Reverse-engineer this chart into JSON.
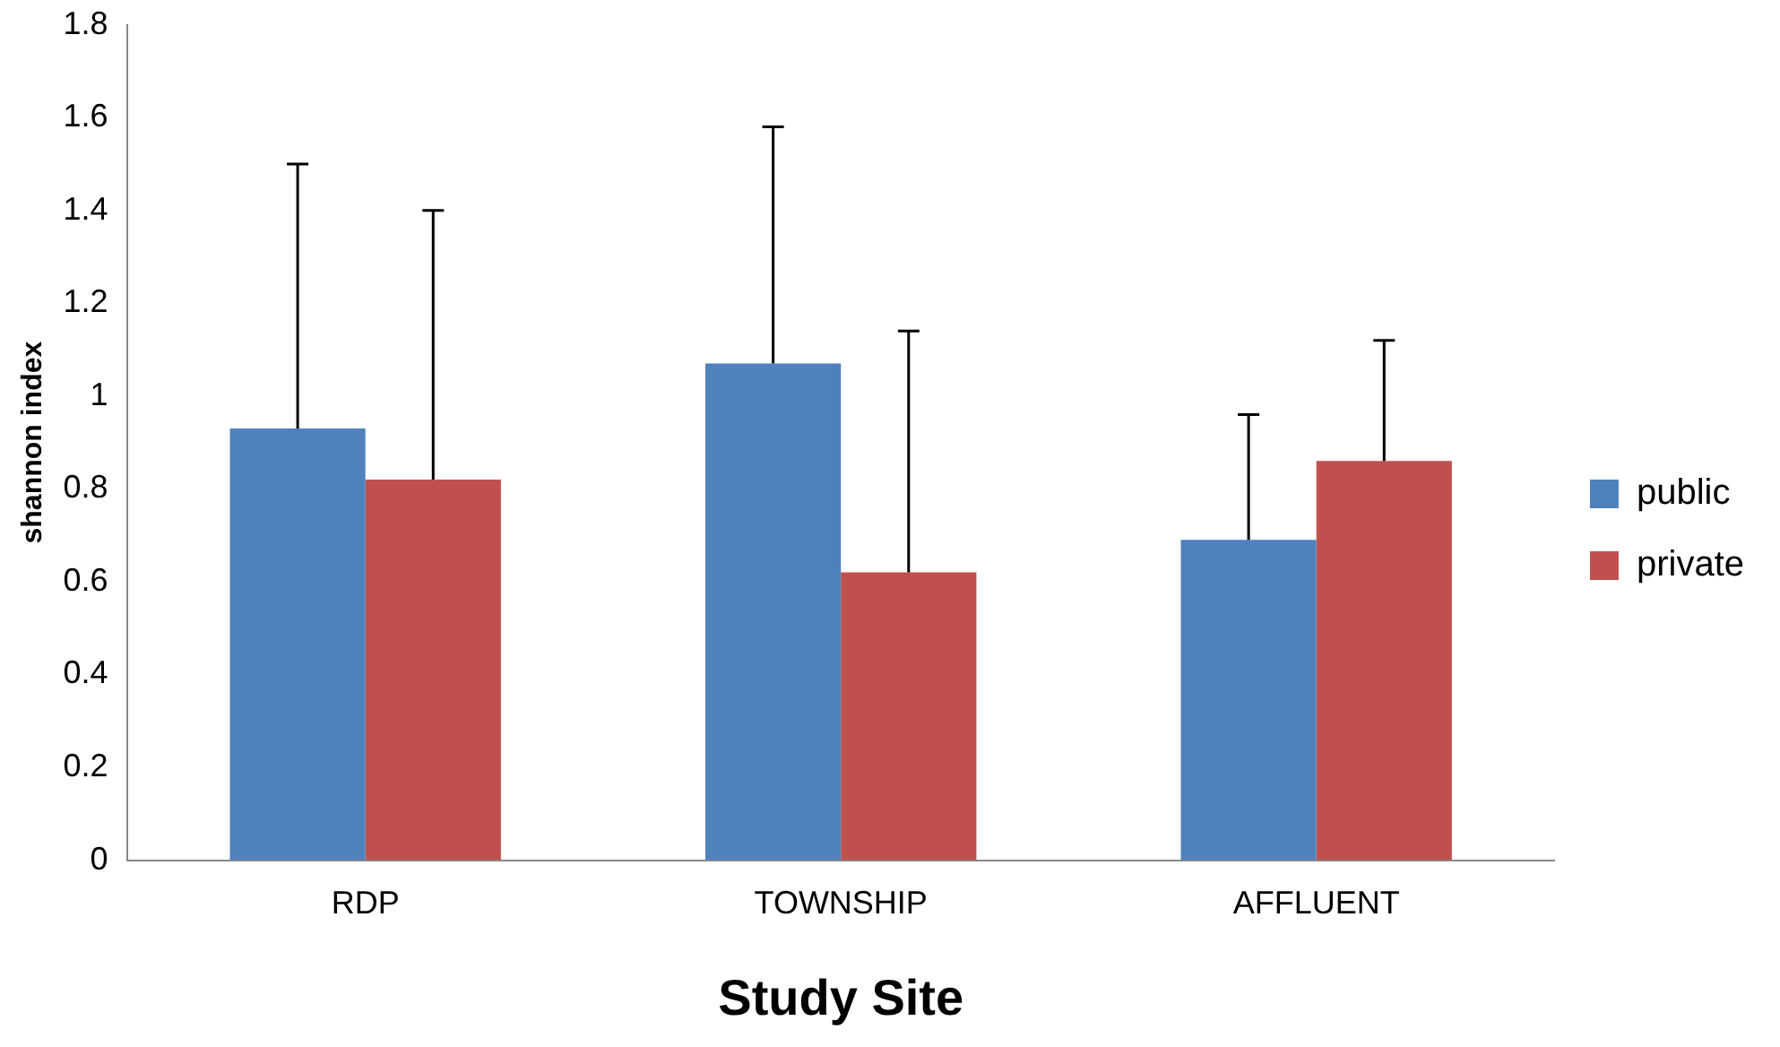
{
  "chart_data": {
    "type": "bar",
    "xlabel": "Study Site",
    "ylabel": "shannon index",
    "categories": [
      "RDP",
      "TOWNSHIP",
      "AFFLUENT"
    ],
    "series": [
      {
        "name": "public",
        "color": "#4f81bd",
        "values": [
          0.93,
          1.07,
          0.69
        ],
        "errors": [
          [
            0.93,
            1.5
          ],
          [
            1.07,
            1.58
          ],
          [
            0.69,
            0.96
          ]
        ]
      },
      {
        "name": "private",
        "color": "#c0504d",
        "values": [
          0.82,
          0.62,
          0.86
        ],
        "errors": [
          [
            0.82,
            1.4
          ],
          [
            0.62,
            1.14
          ],
          [
            0.86,
            1.12
          ]
        ]
      }
    ],
    "ylim": [
      0,
      1.8
    ],
    "yticks": [
      0,
      0.2,
      0.4,
      0.6,
      0.8,
      1,
      1.2,
      1.4,
      1.6,
      1.8
    ],
    "grid": false,
    "legend": "right"
  }
}
